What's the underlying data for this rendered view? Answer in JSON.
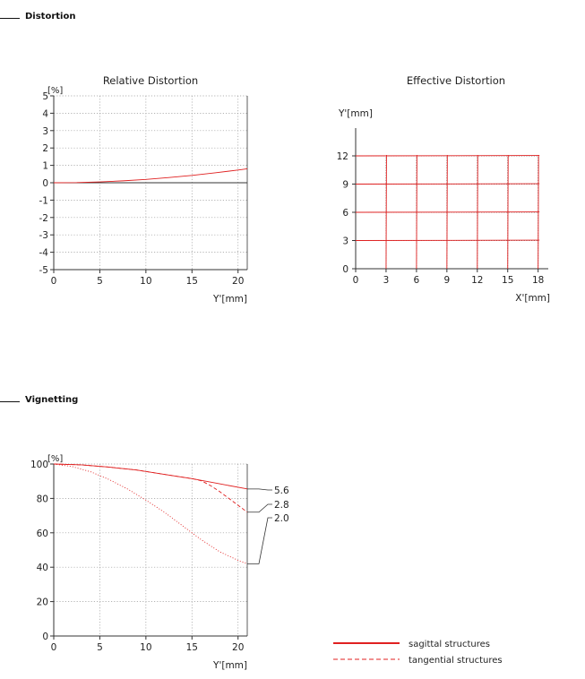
{
  "sections": {
    "distortion": "Distortion",
    "vignetting": "Vignetting"
  },
  "colors": {
    "red": "#e02020",
    "axis": "#333333",
    "grid": "#9a9a9a"
  },
  "legend": {
    "sagittal": "sagittal structures",
    "tangential": "tangential structures"
  },
  "chart_data": [
    {
      "id": "relative-distortion",
      "type": "line",
      "title": "Relative Distortion",
      "xlabel": "Y'[mm]",
      "ylabel": "[%]",
      "xlim": [
        0,
        21
      ],
      "ylim": [
        -5,
        5
      ],
      "xticks": [
        0,
        5,
        10,
        15,
        20
      ],
      "yticks": [
        -5,
        -4,
        -3,
        -2,
        -1,
        0,
        1,
        2,
        3,
        4,
        5
      ],
      "grid": true,
      "series": [
        {
          "style": "solid",
          "x": [
            0,
            2.5,
            5,
            7.5,
            10,
            12.5,
            15,
            17.5,
            20,
            21
          ],
          "y": [
            0,
            0.01,
            0.05,
            0.11,
            0.19,
            0.3,
            0.42,
            0.57,
            0.73,
            0.8
          ]
        }
      ]
    },
    {
      "id": "effective-distortion",
      "type": "line",
      "title": "Effective Distortion",
      "xlabel": "X'[mm]",
      "ylabel": "Y'[mm]",
      "xlim": [
        0,
        19
      ],
      "ylim": [
        0,
        14
      ],
      "xticks": [
        0,
        3,
        6,
        9,
        12,
        15,
        18
      ],
      "yticks": [
        0,
        3,
        6,
        9,
        12
      ],
      "grid": false,
      "distorted_grid": {
        "xs": [
          3,
          6,
          9,
          12,
          15,
          18
        ],
        "ys": [
          3,
          6,
          9,
          12
        ]
      }
    },
    {
      "id": "vignetting",
      "type": "line",
      "title": "",
      "xlabel": "Y'[mm]",
      "ylabel": "[%]",
      "xlim": [
        0,
        21
      ],
      "ylim": [
        0,
        100
      ],
      "xticks": [
        0,
        5,
        10,
        15,
        20
      ],
      "yticks": [
        0,
        20,
        40,
        60,
        80,
        100
      ],
      "grid": true,
      "series": [
        {
          "name": "5.6",
          "style": "solid",
          "x": [
            0,
            3,
            6,
            9,
            12,
            15,
            18,
            21
          ],
          "y": [
            100,
            99.5,
            98.2,
            96.5,
            94,
            91.5,
            88.5,
            85.5
          ]
        },
        {
          "name": "2.8",
          "style": "dashed",
          "x": [
            0,
            3,
            6,
            9,
            12,
            15,
            16,
            17,
            18,
            19,
            20,
            21
          ],
          "y": [
            100,
            99.5,
            98.2,
            96.5,
            94,
            91.5,
            90.3,
            87.5,
            84,
            80,
            76,
            72
          ]
        },
        {
          "name": "2.0",
          "style": "dotted",
          "x": [
            0,
            2,
            4,
            6,
            8,
            10,
            12,
            14,
            16,
            18,
            20,
            21
          ],
          "y": [
            100,
            98.5,
            95.5,
            91,
            85.5,
            79,
            72,
            64,
            56,
            49,
            44,
            42
          ]
        }
      ]
    }
  ]
}
